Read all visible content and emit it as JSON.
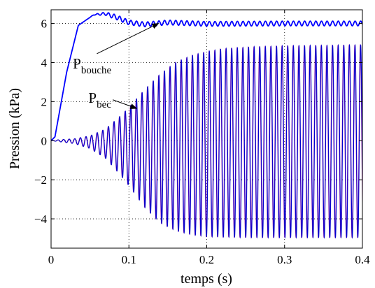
{
  "chart_data": {
    "type": "line",
    "xlabel": "temps (s)",
    "ylabel": "Pression (kPa)",
    "xlim": [
      0,
      0.4
    ],
    "ylim": [
      -5.5,
      6.7
    ],
    "xticks": [
      0,
      0.1,
      0.2,
      0.3,
      0.4
    ],
    "xtick_labels": [
      "0",
      "0.1",
      "0.2",
      "0.3",
      "0.4"
    ],
    "yticks": [
      -4,
      -2,
      0,
      2,
      4,
      6
    ],
    "ytick_labels": [
      "−4",
      "−2",
      "0",
      "2",
      "4",
      "6"
    ],
    "grid": true,
    "grid_style": "dotted",
    "series": [
      {
        "name": "P_bouche",
        "color": "#0000ff",
        "description_points": {
          "x": [
            0,
            0.005,
            0.02,
            0.035,
            0.055,
            0.07,
            0.085,
            0.1,
            0.12,
            0.15,
            0.2,
            0.3,
            0.4
          ],
          "y": [
            0,
            0.2,
            3.5,
            5.9,
            6.45,
            6.5,
            6.3,
            6.05,
            5.95,
            6.05,
            5.98,
            6.0,
            6.0
          ]
        },
        "ripple_amplitude": 0.12
      },
      {
        "name": "P_bec",
        "color": "#0000cd",
        "secondary_color": "#9000a0",
        "oscillation_period": 0.0072,
        "envelope": {
          "x": [
            0,
            0.01,
            0.03,
            0.05,
            0.07,
            0.09,
            0.1,
            0.12,
            0.14,
            0.16,
            0.18,
            0.2,
            0.22,
            0.24,
            0.26,
            0.28,
            0.3,
            0.35,
            0.4
          ],
          "upper": [
            0,
            0.05,
            0.1,
            0.25,
            0.6,
            1.3,
            1.7,
            2.6,
            3.4,
            4.0,
            4.35,
            4.55,
            4.7,
            4.75,
            4.8,
            4.82,
            4.85,
            4.87,
            4.9
          ],
          "lower": [
            0,
            -0.05,
            -0.15,
            -0.4,
            -0.9,
            -1.8,
            -2.3,
            -3.4,
            -4.2,
            -4.6,
            -4.8,
            -4.9,
            -4.92,
            -4.94,
            -4.95,
            -4.95,
            -4.95,
            -4.95,
            -4.95
          ]
        }
      }
    ],
    "annotations": [
      {
        "main": "P",
        "sub": "bouche",
        "target": [
          0.138,
          6.0
        ],
        "text_pos": [
          0.028,
          3.7
        ]
      },
      {
        "main": "P",
        "sub": "bec",
        "target": [
          0.11,
          1.65
        ],
        "text_pos": [
          0.048,
          1.95
        ]
      }
    ]
  }
}
